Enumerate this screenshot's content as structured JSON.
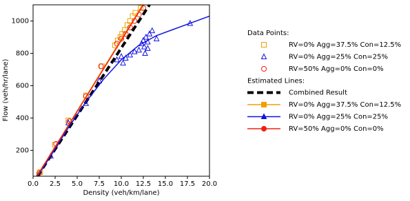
{
  "chart_data": {
    "type": "scatter",
    "xlabel": "Density (veh/km/lane)",
    "ylabel": "Flow (veh/hr/lane)",
    "xlim": [
      0,
      20
    ],
    "ylim": [
      40,
      1100
    ],
    "xticks": [
      {
        "value": 0,
        "label": "0.0"
      },
      {
        "value": 2.5,
        "label": "2.5"
      },
      {
        "value": 5,
        "label": "5.0"
      },
      {
        "value": 7.5,
        "label": "7.5"
      },
      {
        "value": 10,
        "label": "10.0"
      },
      {
        "value": 12.5,
        "label": "12.5"
      },
      {
        "value": 15,
        "label": "15.0"
      },
      {
        "value": 17.5,
        "label": "17.5"
      },
      {
        "value": 20,
        "label": "20.0"
      }
    ],
    "yticks": [
      200,
      400,
      600,
      800,
      1000
    ],
    "series_groups": [
      {
        "title": "Data Points:",
        "series": [
          {
            "name": "RV=0% Agg=37.5% Con=12.5%",
            "color": "#f0a000",
            "marker": "square",
            "kind": "scatter",
            "x": [
              0.8,
              2.5,
              4,
              6,
              7.8,
              9.3,
              9.6,
              9.9,
              10.1,
              10.4,
              10.7,
              11,
              11.3,
              11.6,
              12.2
            ],
            "values": [
              65,
              235,
              385,
              540,
              720,
              850,
              880,
              900,
              920,
              945,
              975,
              1000,
              1030,
              1050,
              1080
            ]
          },
          {
            "name": "RV=0% Agg=25% Con=25%",
            "color": "#1010e0",
            "marker": "triangle",
            "kind": "scatter",
            "x": [
              2,
              4,
              6,
              7.5,
              9.5,
              10,
              10.2,
              10.5,
              11,
              11.5,
              12,
              12.3,
              12.5,
              12.6,
              12.8,
              13,
              13.2,
              13.5,
              14,
              12.7,
              13,
              17.8
            ],
            "values": [
              165,
              370,
              490,
              630,
              760,
              780,
              740,
              770,
              790,
              810,
              820,
              860,
              880,
              840,
              900,
              870,
              920,
              940,
              890,
              800,
              830,
              985
            ]
          },
          {
            "name": "RV=50% Agg=0% Con=0%",
            "color": "#f02010",
            "marker": "circle",
            "kind": "scatter",
            "x": [
              0.7,
              2.6,
              4.1,
              6,
              7.7,
              9.5,
              10,
              10.5,
              11,
              11.5,
              12,
              12.5
            ],
            "values": [
              60,
              240,
              380,
              535,
              720,
              860,
              890,
              920,
              960,
              1000,
              1040,
              1080
            ]
          }
        ]
      },
      {
        "title": "Estimated Lines:",
        "series": [
          {
            "name": "Combined Result",
            "color": "#000000",
            "kind": "line",
            "dash": true,
            "x": [
              0.5,
              13.2
            ],
            "values": [
              40,
              1100
            ]
          },
          {
            "name": "RV=0% Agg=37.5% Con=12.5%",
            "color": "#f0a000",
            "marker": "square",
            "kind": "line",
            "x": [
              0.5,
              12.3
            ],
            "values": [
              45,
              1090
            ]
          },
          {
            "name": "RV=0% Agg=25% Con=25%",
            "color": "#1010e0",
            "marker": "triangle",
            "kind": "line",
            "x": [
              0.5,
              2,
              4,
              6,
              8,
              10,
              12,
              14,
              16,
              18,
              20
            ],
            "values": [
              40,
              165,
              340,
              500,
              640,
              760,
              850,
              910,
              950,
              990,
              1030
            ]
          },
          {
            "name": "RV=50% Agg=0% Con=0%",
            "color": "#f02010",
            "marker": "circle",
            "kind": "line",
            "x": [
              0.5,
              12.5
            ],
            "values": [
              45,
              1100
            ]
          }
        ]
      }
    ]
  }
}
